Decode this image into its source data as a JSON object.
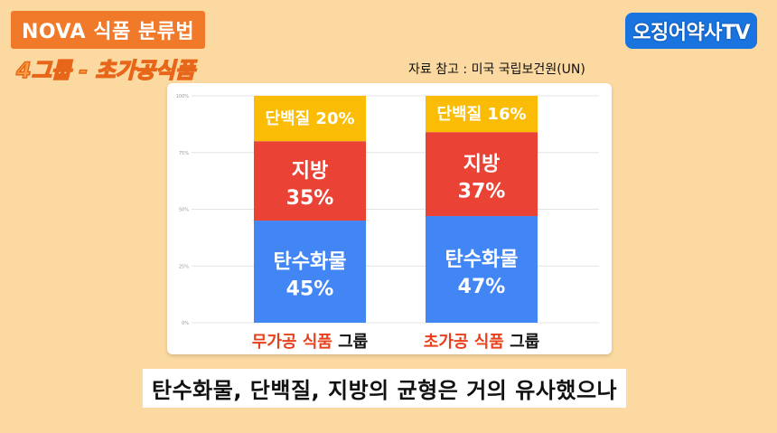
{
  "header": {
    "title": "NOVA 식품 분류법",
    "subtitle": "4그룹 - 초가공식품",
    "channel": "오징어약사TV",
    "source": "자료 참고 : 미국 국립보건원(UN)"
  },
  "caption": "탄수화물, 단백질, 지방의 균형은 거의 유사했으나",
  "chart_data": {
    "type": "bar",
    "stacked": true,
    "ylim": [
      0,
      100
    ],
    "y_ticks": [
      "0%",
      "25%",
      "50%",
      "75%",
      "100%"
    ],
    "grid": true,
    "categories": [
      {
        "highlight": "무가공 식품",
        "suffix": " 그룹"
      },
      {
        "highlight": "초가공 식품",
        "suffix": " 그룹"
      }
    ],
    "series": [
      {
        "name": "탄수화물",
        "values": [
          45,
          47
        ],
        "labels": [
          "45%",
          "47%"
        ],
        "color": "#4285f4"
      },
      {
        "name": "지방",
        "values": [
          35,
          37
        ],
        "labels": [
          "35%",
          "37%"
        ],
        "color": "#ea4335"
      },
      {
        "name": "단백질",
        "values": [
          20,
          16
        ],
        "labels": [
          "20%",
          "16%"
        ],
        "color": "#fbbc05"
      }
    ],
    "label_color": "#ffffff",
    "category_highlight_color": "#e8401c"
  }
}
